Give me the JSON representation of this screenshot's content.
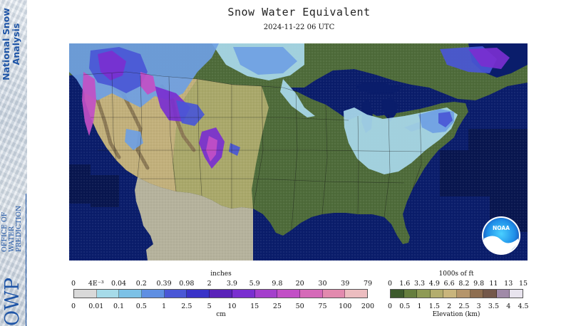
{
  "sidebar": {
    "brand_line1": "National Snow",
    "brand_line2": "Analysis",
    "org_abbrev": "OWP",
    "org_line1": "OFFICE OF",
    "org_line2": "WATER",
    "org_line3": "PREDICTION"
  },
  "header": {
    "title": "Snow Water Equivalent",
    "timestamp": "2024-11-22 06 UTC"
  },
  "map": {
    "logo_text": "NOAA",
    "colors": {
      "ocean": "#0a1d6b",
      "offshore_dark": "#08164f",
      "lowland_green": "#4e6b3a",
      "plains_tan": "#a9a86a",
      "desert_tan": "#c2b07b",
      "mountain_brown": "#8c7a55",
      "mexico_gray": "#b5b29c",
      "snow_trace": "#a9d9ec",
      "snow_light": "#6f9fe3",
      "snow_mid": "#4a57d6",
      "snow_heavy": "#7a2fd0",
      "snow_max": "#c24fc6"
    }
  },
  "swe_legend": {
    "unit_top": "inches",
    "unit_bottom": "cm",
    "inch_labels": [
      "0",
      "4E⁻³",
      "0.04",
      "0.2",
      "0.39",
      "0.98",
      "2",
      "3.9",
      "5.9",
      "9.8",
      "20",
      "30",
      "39",
      "79"
    ],
    "cm_labels": [
      "0",
      "0.01",
      "0.1",
      "0.5",
      "1",
      "2.5",
      "5",
      "10",
      "15",
      "25",
      "50",
      "75",
      "100",
      "200"
    ],
    "colors": [
      "#d9d9d9",
      "#a6dbe9",
      "#7cc1e6",
      "#5f8fe2",
      "#4a57d6",
      "#3a33c8",
      "#5a23b9",
      "#7a2fd0",
      "#a43fcc",
      "#c24fc6",
      "#d56ab8",
      "#e28aae",
      "#ecbdc0"
    ]
  },
  "elev_legend": {
    "unit_top": "1000s of ft",
    "unit_bottom": "Elevation (km)",
    "ft_labels": [
      "0",
      "1.6",
      "3.3",
      "4.9",
      "6.6",
      "8.2",
      "9.8",
      "11",
      "13",
      "15"
    ],
    "km_labels": [
      "0",
      "0.5",
      "1",
      "1.5",
      "2",
      "2.5",
      "3",
      "3.5",
      "4",
      "4.5"
    ],
    "colors": [
      "#3d5a2c",
      "#667e3e",
      "#8e9a55",
      "#b3ad6e",
      "#c9b57c",
      "#b5956a",
      "#8e6e50",
      "#74584a",
      "#a08aa8",
      "#e8e4ee"
    ]
  }
}
